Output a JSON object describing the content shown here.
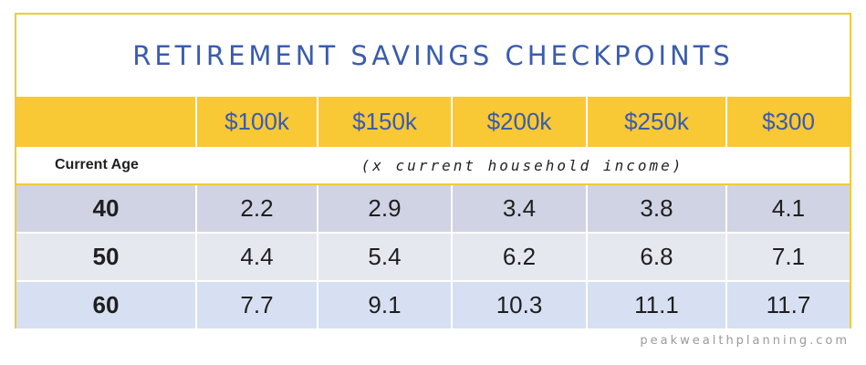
{
  "title": "RETIREMENT SAVINGS CHECKPOINTS",
  "columns": [
    "$100k",
    "$150k",
    "$200k",
    "$250k",
    "$300"
  ],
  "age_label": "Current Age",
  "income_note": "(x current household income)",
  "rows": [
    {
      "age": "40",
      "values": [
        "2.2",
        "2.9",
        "3.4",
        "3.8",
        "4.1"
      ]
    },
    {
      "age": "50",
      "values": [
        "4.4",
        "5.4",
        "6.2",
        "6.8",
        "7.1"
      ]
    },
    {
      "age": "60",
      "values": [
        "7.7",
        "9.1",
        "10.3",
        "11.1",
        "11.7"
      ]
    }
  ],
  "footer": "peakwealthplanning.com",
  "colors": {
    "title": "#3a5cae",
    "header_bg": "#f8c835",
    "border": "#f3c93a",
    "row_40": "#cfd3e3",
    "row_50": "#e5e8ef",
    "row_60": "#d7e0f2"
  }
}
